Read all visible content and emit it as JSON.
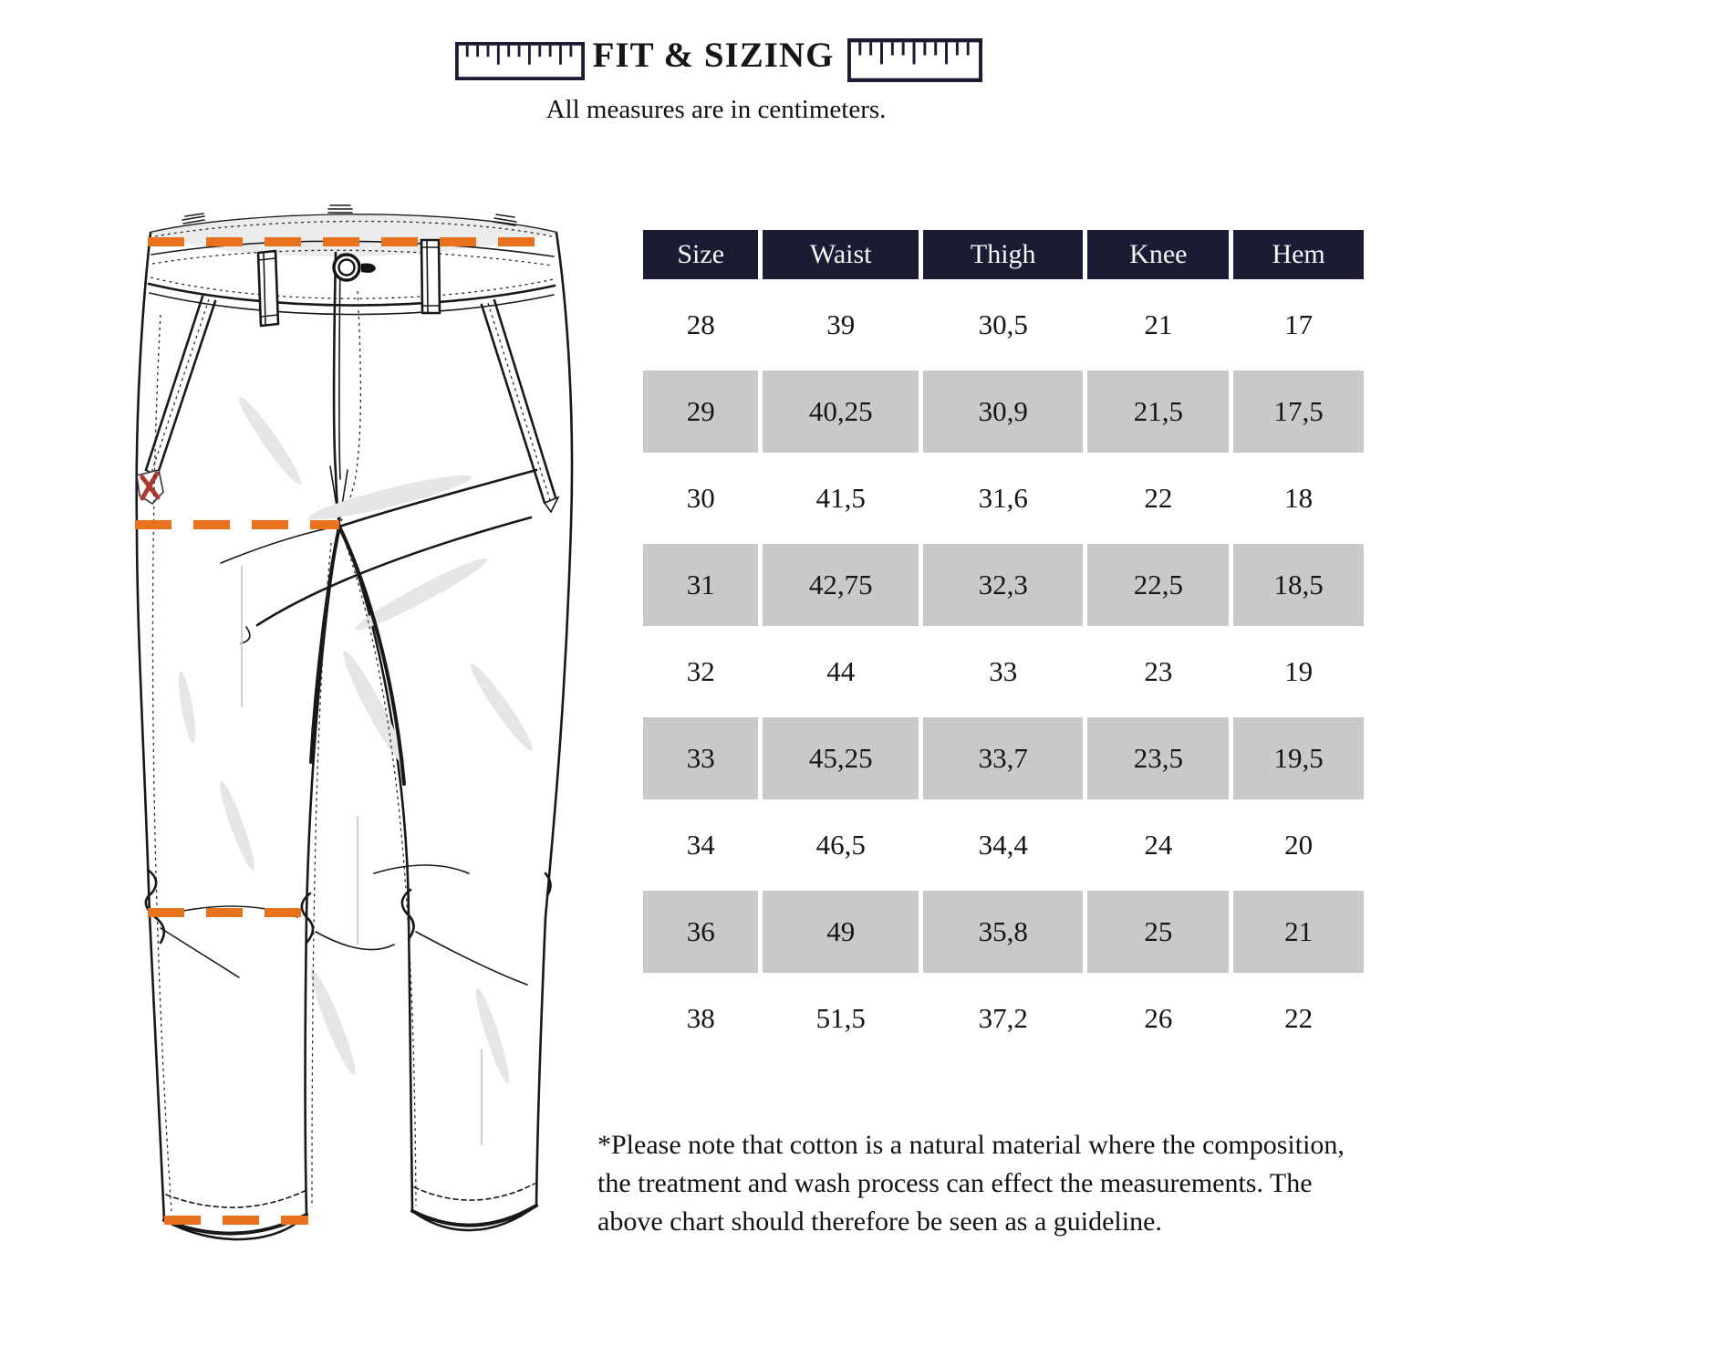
{
  "header": {
    "title": "FIT & SIZING",
    "subtitle": "All measures are in centimeters."
  },
  "size_table": {
    "columns": [
      "Size",
      "Waist",
      "Thigh",
      "Knee",
      "Hem"
    ],
    "rows": [
      [
        "28",
        "39",
        "30,5",
        "21",
        "17"
      ],
      [
        "29",
        "40,25",
        "30,9",
        "21,5",
        "17,5"
      ],
      [
        "30",
        "41,5",
        "31,6",
        "22",
        "18"
      ],
      [
        "31",
        "42,75",
        "32,3",
        "22,5",
        "18,5"
      ],
      [
        "32",
        "44",
        "33",
        "23",
        "19"
      ],
      [
        "33",
        "45,25",
        "33,7",
        "23,5",
        "19,5"
      ],
      [
        "34",
        "46,5",
        "34,4",
        "24",
        "20"
      ],
      [
        "36",
        "49",
        "35,8",
        "25",
        "21"
      ],
      [
        "38",
        "51,5",
        "37,2",
        "26",
        "22"
      ]
    ]
  },
  "diagram": {
    "measurement_lines": [
      "Waist",
      "Thigh",
      "Knee",
      "Hem"
    ]
  },
  "footnote": "*Please note that cotton is a natural material where the composition, the treatment and wash process can effect the measurements. The above chart should therefore be seen as a guideline.",
  "colors": {
    "header_navy": "#1b1b33",
    "row_gray": "#c9c9c9",
    "accent_orange": "#e8721d",
    "patch_red": "#b03a30"
  }
}
